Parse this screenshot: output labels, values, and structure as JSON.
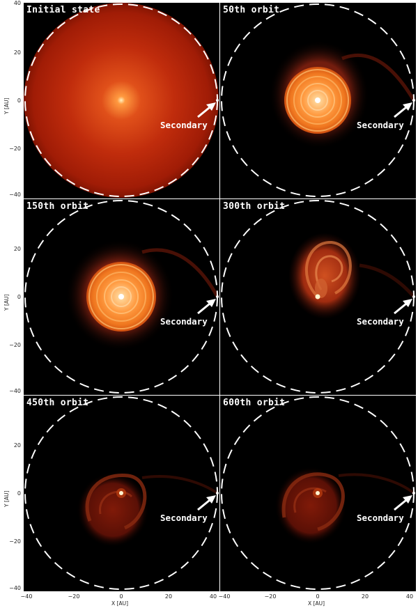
{
  "panels": [
    {
      "title": "Initial state",
      "secondary_label": "Secondary",
      "state": "initial"
    },
    {
      "title": "50th orbit",
      "secondary_label": "Secondary",
      "state": "rings"
    },
    {
      "title": "150th orbit",
      "secondary_label": "Secondary",
      "state": "rings"
    },
    {
      "title": "300th orbit",
      "secondary_label": "Secondary",
      "state": "spiral"
    },
    {
      "title": "450th orbit",
      "secondary_label": "Secondary",
      "state": "faint"
    },
    {
      "title": "600th orbit",
      "secondary_label": "Secondary",
      "state": "faint"
    }
  ],
  "axes": {
    "xlabel": "X [AU]",
    "ylabel": "Y [AU]",
    "range": [
      -40,
      40
    ],
    "ticks": [
      "20",
      "0",
      "−20",
      "−40"
    ],
    "xticks": [
      "−40",
      "−20",
      "0",
      "20",
      "40",
      "−40",
      "−20",
      "0",
      "20",
      "40"
    ],
    "ytop": "40"
  },
  "colors": {
    "background": "#000000",
    "disk_core": "#ffe6a0",
    "disk_mid": "#f07a20",
    "disk_outer": "#a01808",
    "circle": "#ffffff"
  }
}
